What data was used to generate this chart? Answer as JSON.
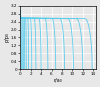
{
  "ylabel": "p/p₀",
  "xlabel": "r/a₀",
  "ylim": [
    0,
    3.2
  ],
  "xlim": [
    0,
    14.5
  ],
  "plateau_value": 2.57,
  "elastic_peak": 3.0,
  "curve_color": "#55ccee",
  "background_color": "#e8e8e8",
  "grid_color": "#ffffff",
  "line_width": 0.6,
  "n_curves": 15,
  "contact_radii": [
    0.22,
    0.38,
    0.6,
    0.85,
    1.15,
    1.6,
    2.2,
    3.0,
    4.0,
    5.3,
    6.8,
    8.5,
    10.2,
    12.0,
    13.8
  ],
  "ytick_vals": [
    0,
    0.4,
    0.8,
    1.2,
    1.6,
    2.0,
    2.4,
    2.8,
    3.2
  ],
  "ytick_labels": [
    "0",
    "0.4",
    "0.8",
    "1.2",
    "1.6",
    "2.0",
    "2.4",
    "2.8",
    "3.2"
  ],
  "xtick_positions": [
    0,
    2,
    4,
    6,
    8,
    10,
    12,
    14
  ],
  "xtick_labels": [
    "0",
    "2",
    "4",
    "6",
    "8",
    "10",
    "12",
    "14"
  ]
}
